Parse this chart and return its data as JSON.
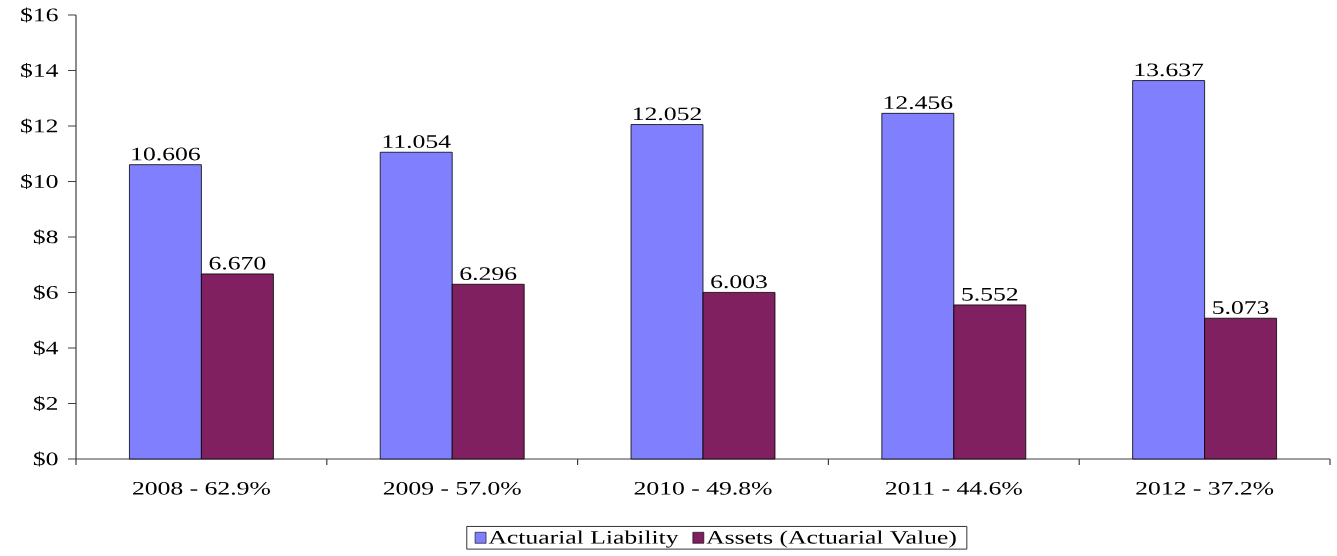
{
  "chart_data": {
    "type": "bar",
    "categories": [
      "2008 - 62.9%",
      "2009 - 57.0%",
      "2010 - 49.8%",
      "2011 - 44.6%",
      "2012 - 37.2%"
    ],
    "series": [
      {
        "name": "Actuarial Liability",
        "color": "#8080ff",
        "values": [
          10.606,
          11.054,
          12.052,
          12.456,
          13.637
        ],
        "value_labels": [
          "10.606",
          "11.054",
          "12.052",
          "12.456",
          "13.637"
        ]
      },
      {
        "name": "Assets (Actuarial Value)",
        "color": "#802060",
        "values": [
          6.67,
          6.296,
          6.003,
          5.552,
          5.073
        ],
        "value_labels": [
          "6.670",
          "6.296",
          "6.003",
          "5.552",
          "5.073"
        ]
      }
    ],
    "ylim": [
      0,
      16
    ],
    "yticks": [
      {
        "value": 0,
        "label": "$0"
      },
      {
        "value": 2,
        "label": "$2"
      },
      {
        "value": 4,
        "label": "$4"
      },
      {
        "value": 6,
        "label": "$6"
      },
      {
        "value": 8,
        "label": "$8"
      },
      {
        "value": 10,
        "label": "$10"
      },
      {
        "value": 12,
        "label": "$12"
      },
      {
        "value": 14,
        "label": "$14"
      },
      {
        "value": 16,
        "label": "$16"
      }
    ],
    "legend": "bottom"
  }
}
